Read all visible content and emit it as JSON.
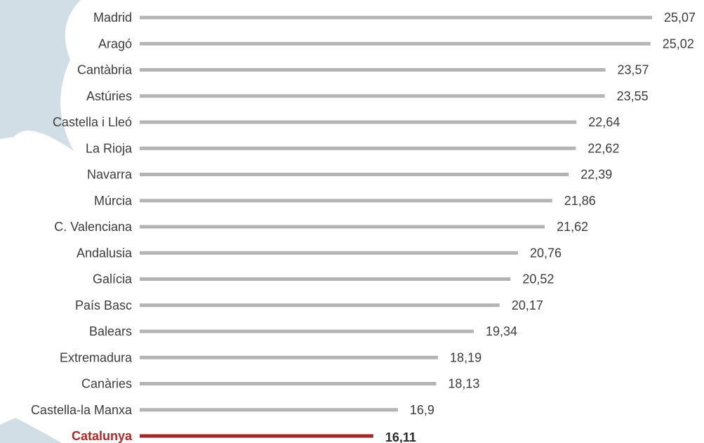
{
  "chart_data": {
    "type": "bar",
    "orientation": "horizontal",
    "categories": [
      "Madrid",
      "Aragó",
      "Cantàbria",
      "Astúries",
      "Castella i Lleó",
      "La Rioja",
      "Navarra",
      "Múrcia",
      "C. Valenciana",
      "Andalusia",
      "Galícia",
      "País Basc",
      "Balears",
      "Extremadura",
      "Canàries",
      "Castella-la Manxa",
      "Catalunya"
    ],
    "values": [
      25.07,
      25.02,
      23.57,
      23.55,
      22.64,
      22.62,
      22.39,
      21.86,
      21.62,
      20.76,
      20.52,
      20.17,
      19.34,
      18.19,
      18.13,
      16.9,
      16.11
    ],
    "value_labels": [
      "25,07",
      "25,02",
      "23,57",
      "23,55",
      "22,64",
      "22,62",
      "22,39",
      "21,86",
      "21,62",
      "20,76",
      "20,52",
      "20,17",
      "19,34",
      "18,19",
      "18,13",
      "16,9",
      "16,11"
    ],
    "highlight_category": "Catalunya",
    "colors": {
      "bar": "#b4b4b4",
      "highlight": "#a3262a",
      "background_shape": "#d1dee5"
    },
    "grid": false,
    "legend": "none",
    "xlim": [
      0,
      25.07
    ]
  }
}
